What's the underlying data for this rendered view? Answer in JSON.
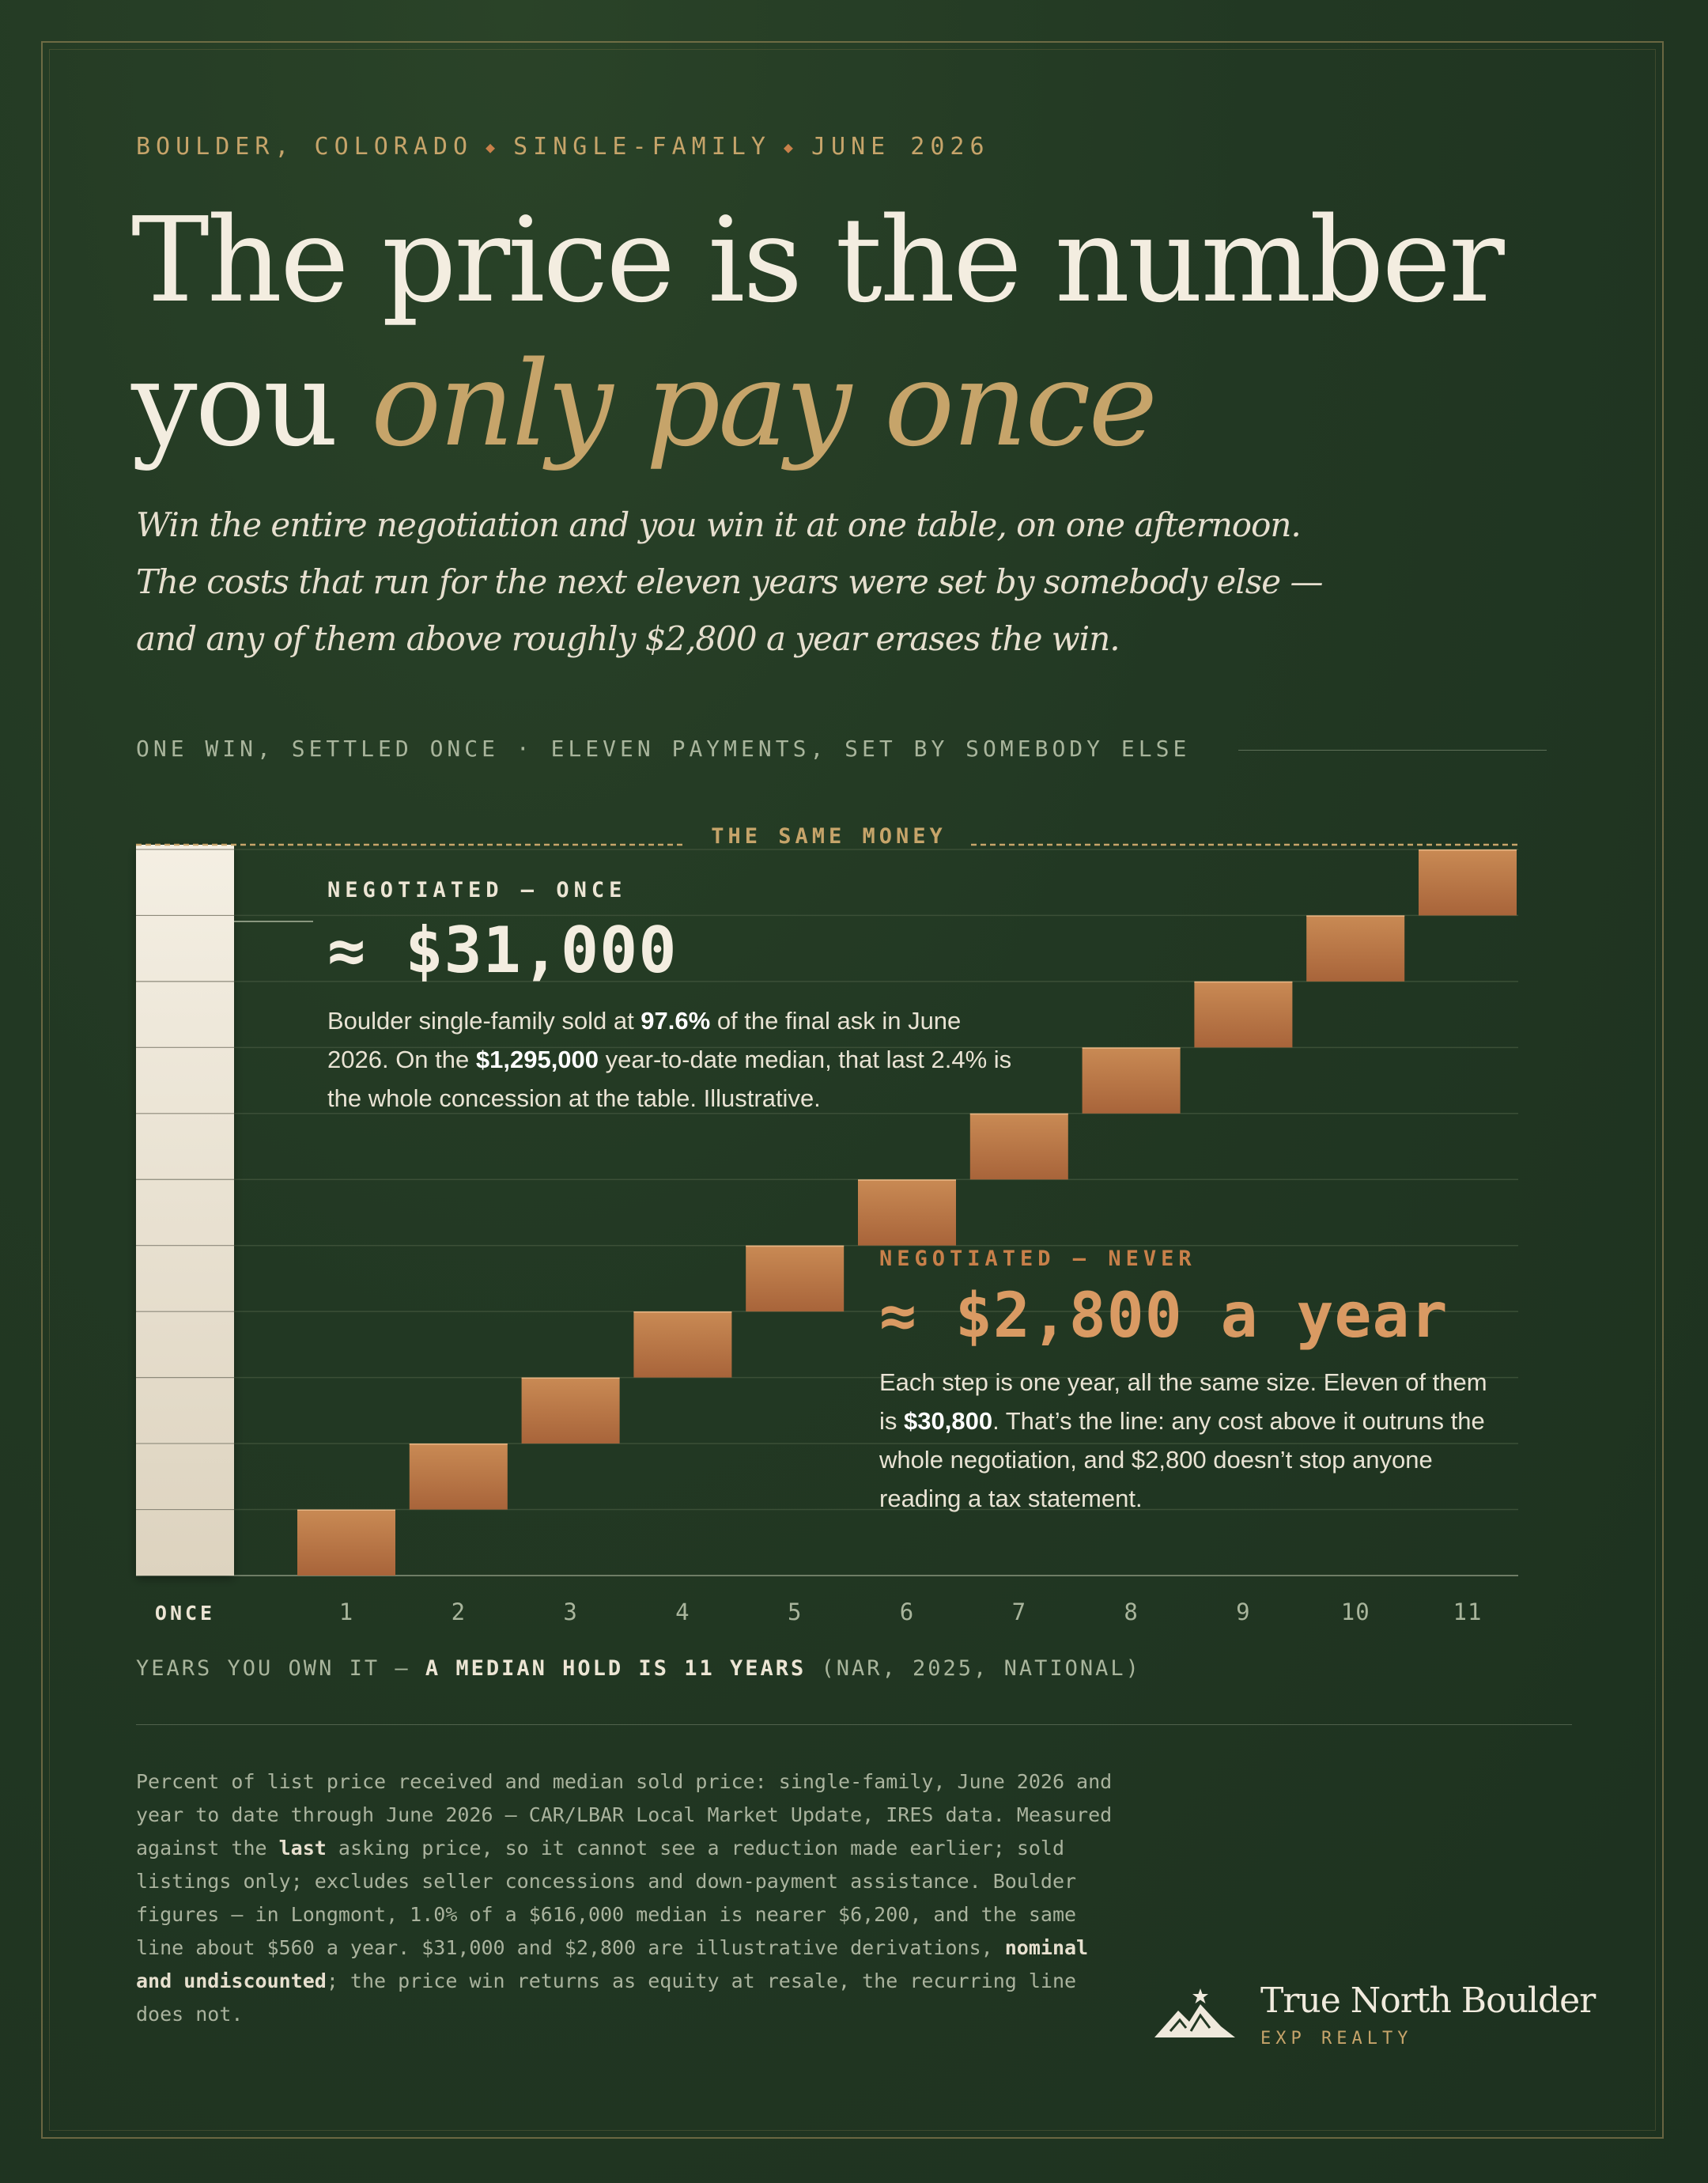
{
  "eyebrow": {
    "location": "BOULDER, COLORADO",
    "segment": "SINGLE-FAMILY",
    "date": "JUNE 2026"
  },
  "headline": {
    "line1": "The price is the number",
    "line2_plain": "you ",
    "line2_accent": "only pay once"
  },
  "subtitle": {
    "lines": [
      "Win the entire negotiation and you win it at one table, on one afternoon.",
      "The costs that run for the next eleven years were set by somebody else —",
      "and any of them above roughly $2,800 a year erases the win."
    ]
  },
  "section_label": "ONE WIN, SETTLED ONCE · ELEVEN PAYMENTS, SET BY SOMEBODY ELSE",
  "annotations": {
    "once": {
      "label": "NEGOTIATED — ONCE",
      "value": "≈ $31,000",
      "body_1": "Boulder single-family sold at ",
      "body_b1": "97.6%",
      "body_2": " of the final ask in June 2026. On the ",
      "body_b2": "$1,295,000",
      "body_3": " year-to-date median, that last 2.4% is the whole concession at the table. Illustrative."
    },
    "never": {
      "label": "NEGOTIATED — NEVER",
      "value": "≈ $2,800 a year",
      "body_1": "Each step is one year, all the same size. Eleven of them is ",
      "body_b1": "$30,800",
      "body_2": ". That’s the line: any cost above it outruns the whole negotiation, and $2,800 doesn’t stop anyone reading a tax statement."
    }
  },
  "chart_data": {
    "type": "waterfall",
    "title": "",
    "reference_line_label": "THE SAME MONEY",
    "once_bar": {
      "category": "ONCE",
      "value": 31000
    },
    "categories": [
      "ONCE",
      "1",
      "2",
      "3",
      "4",
      "5",
      "6",
      "7",
      "8",
      "9",
      "10",
      "11"
    ],
    "step": {
      "value_per_year": 2800,
      "years": [
        1,
        2,
        3,
        4,
        5,
        6,
        7,
        8,
        9,
        10,
        11
      ],
      "cumulative": [
        2800,
        5600,
        8400,
        11200,
        14000,
        16800,
        19600,
        22400,
        25200,
        28000,
        30800
      ]
    },
    "ylim": [
      0,
      31000
    ],
    "grid": true,
    "xlabel_plain": "YEARS YOU OWN IT — ",
    "xlabel_bold": "A MEDIAN HOLD IS 11 YEARS",
    "xlabel_source": " (NAR, 2025, NATIONAL)",
    "colors": {
      "once_bar_top": "#f4efe3",
      "once_bar_bottom": "#ddd3bf",
      "step_top": "#c98a54",
      "step_bottom": "#a8643a",
      "reference_line": "#c6a46a",
      "grid": "#3b4f37"
    }
  },
  "footnote": {
    "p1": "Percent of list price received and median sold price: single-family, June 2026 and year to date through June 2026 — CAR/LBAR Local Market Update, IRES data. Measured against the ",
    "b1": "last",
    "p2": " asking price, so it cannot see a reduction made earlier; sold listings only; excludes seller concessions and down-payment assistance. Boulder figures — in Longmont, 1.0% of a $616,000 median is nearer $6,200, and the same line about $560 a year. $31,000 and $2,800 are illustrative derivations, ",
    "b2": "nominal and undiscounted",
    "p3": "; the price win returns as equity at resale, the recurring line does not."
  },
  "brand": {
    "name": "True North Boulder",
    "sub": "EXP REALTY",
    "logo_icon": "mountain-star-icon"
  }
}
